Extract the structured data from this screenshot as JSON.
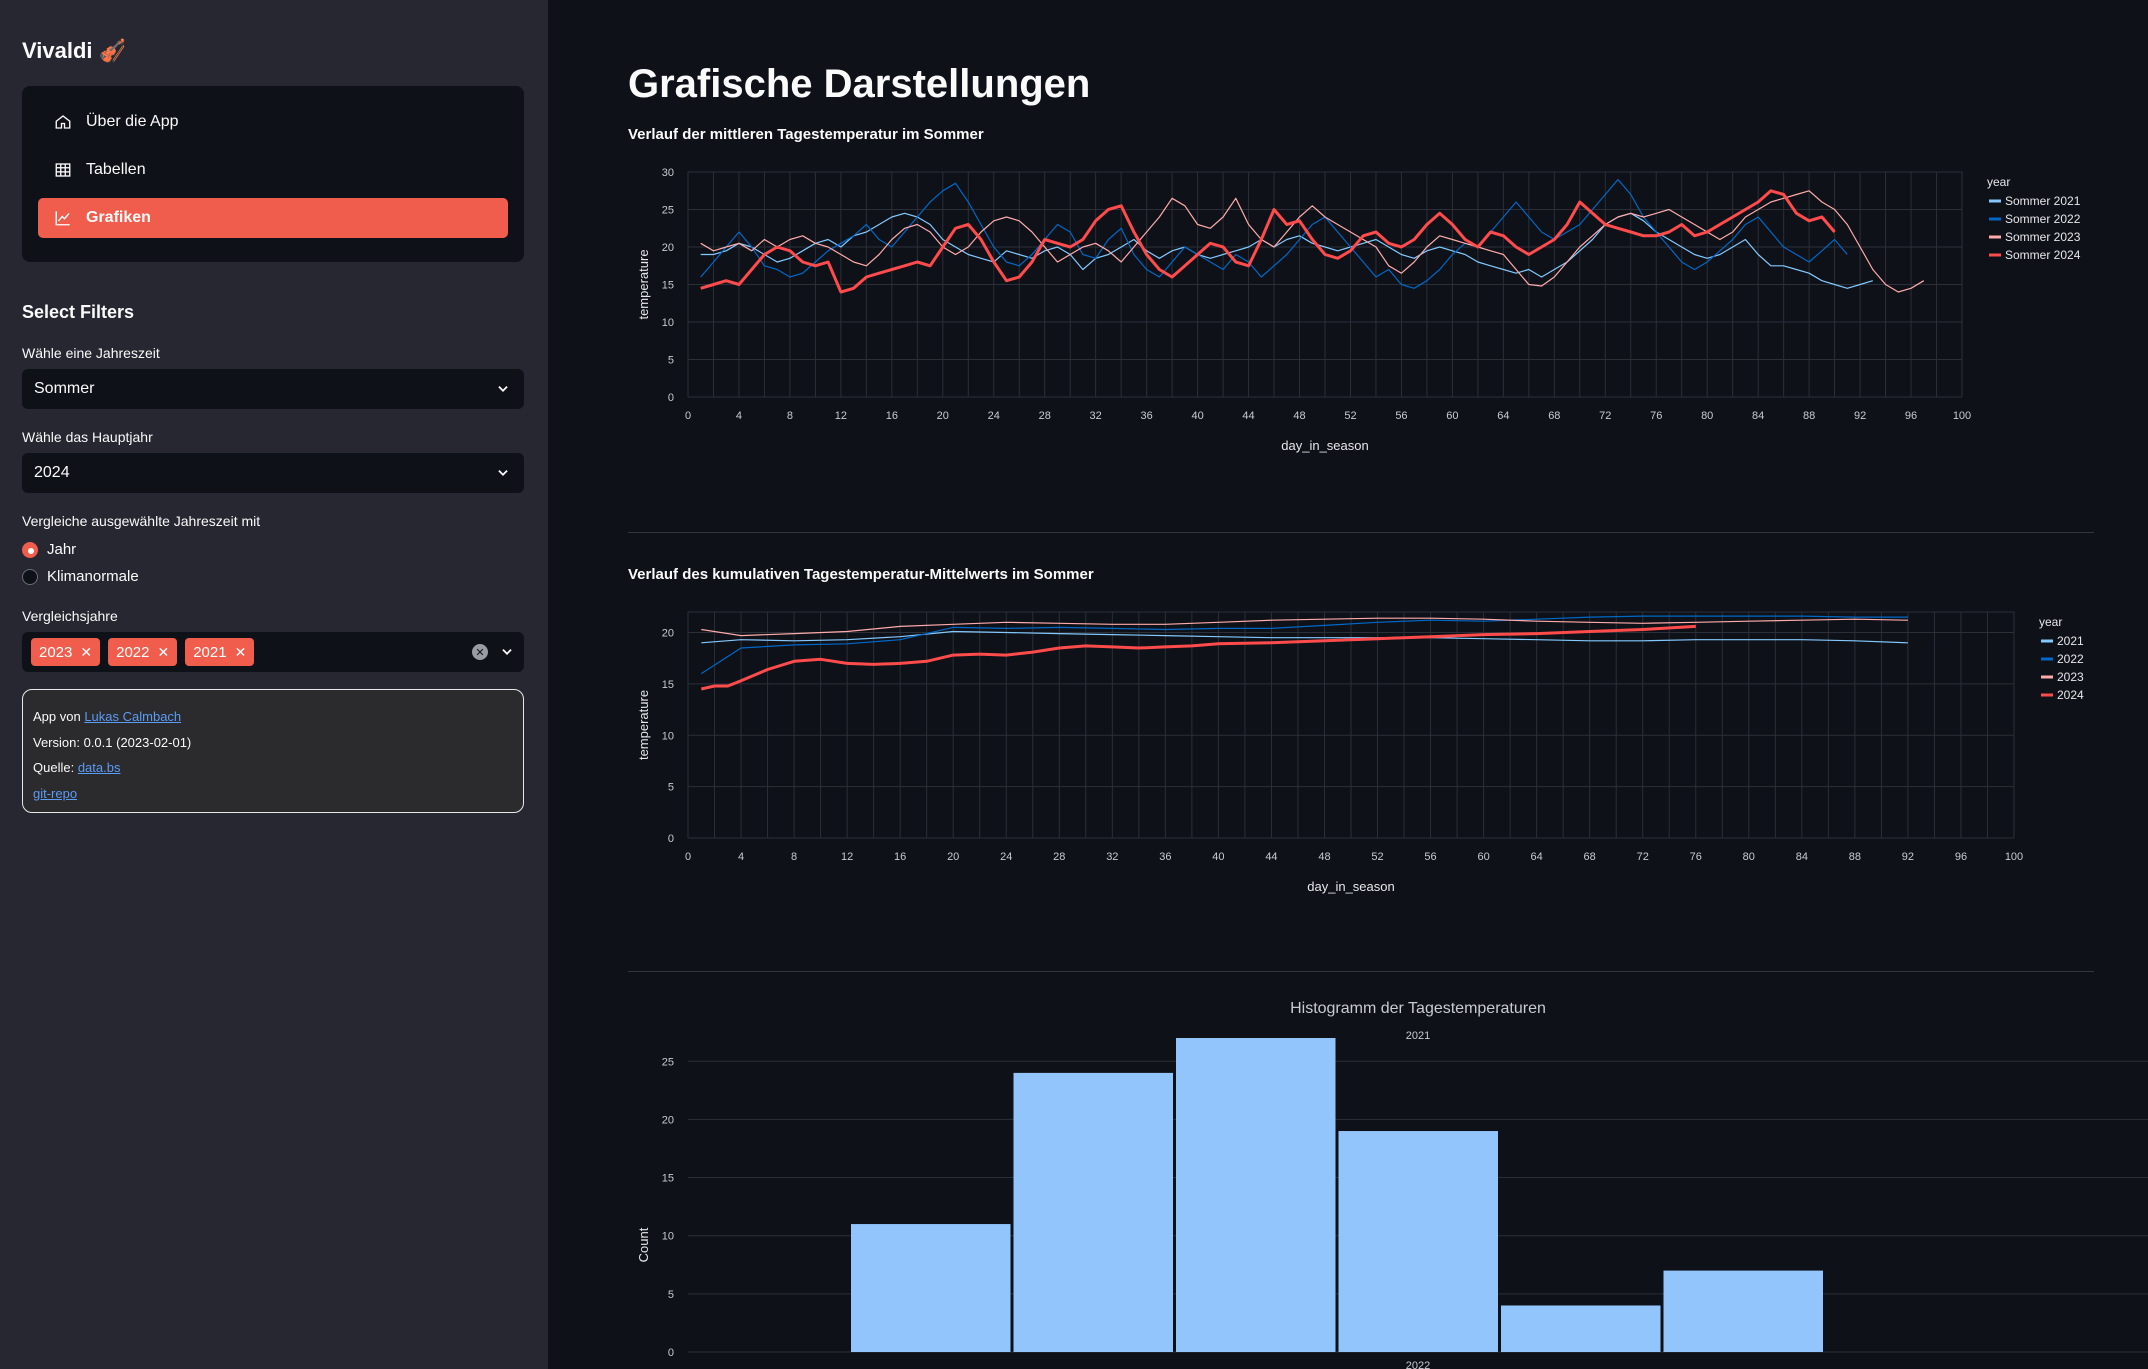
{
  "app": {
    "title": "Vivaldi",
    "title_icon": "🎻"
  },
  "nav": {
    "items": [
      {
        "label": "Über die App",
        "icon": "house-icon",
        "active": false
      },
      {
        "label": "Tabellen",
        "icon": "table-icon",
        "active": false
      },
      {
        "label": "Grafiken",
        "icon": "line-chart-icon",
        "active": true
      }
    ]
  },
  "filters": {
    "title": "Select Filters",
    "season_label": "Wähle eine Jahreszeit",
    "season_value": "Sommer",
    "year_label": "Wähle das Hauptjahr",
    "year_value": "2024",
    "compare_label": "Vergleiche ausgewählte Jahreszeit mit",
    "compare_options": [
      {
        "label": "Jahr",
        "checked": true
      },
      {
        "label": "Klimanormale",
        "checked": false
      }
    ],
    "years_label": "Vergleichsjahre",
    "years_selected": [
      "2023",
      "2022",
      "2021"
    ]
  },
  "info": {
    "author_prefix": "App von ",
    "author_name": "Lukas Calmbach",
    "version": "Version: 0.0.1 (2023-02-01)",
    "source_prefix": "Quelle: ",
    "source_link": "data.bs",
    "repo_link": "git-repo"
  },
  "main": {
    "title": "Grafische Darstellungen"
  },
  "colors": {
    "y2021": "#83c9ff",
    "y2022": "#0068c9",
    "y2023": "#ffabab",
    "y2024": "#ff4b4b",
    "accent": "#f05d4d",
    "hist_bar": "#93c5fd"
  },
  "chart_data": [
    {
      "type": "line",
      "title": "Verlauf der mittleren Tagestemperatur im Sommer",
      "xlabel": "day_in_season",
      "ylabel": "temperature",
      "xlim": [
        0,
        100
      ],
      "ylim": [
        0,
        30
      ],
      "xticks": [
        0,
        4,
        8,
        12,
        16,
        20,
        24,
        28,
        32,
        36,
        40,
        44,
        48,
        52,
        56,
        60,
        64,
        68,
        72,
        76,
        80,
        84,
        88,
        92,
        96,
        100
      ],
      "yticks": [
        0,
        5,
        10,
        15,
        20,
        25,
        30
      ],
      "legend_title": "year",
      "legend_position": "top-right",
      "series": [
        {
          "name": "Sommer 2021",
          "color": "#83c9ff",
          "width": 1.2,
          "values": [
            19,
            19,
            19.5,
            20.5,
            20,
            19,
            18,
            18.5,
            19.5,
            20.5,
            21,
            20,
            21.5,
            22,
            23,
            24,
            24.5,
            24,
            23,
            21,
            20,
            19,
            18.5,
            18,
            19.5,
            19,
            18.5,
            19.5,
            20,
            19,
            17,
            18.5,
            19,
            20,
            21,
            19.5,
            18.5,
            19.5,
            20,
            19,
            18.5,
            19,
            19.5,
            20,
            21,
            20,
            21,
            21.5,
            20.5,
            20,
            19.5,
            20,
            20.5,
            21,
            20,
            19,
            18.5,
            19.5,
            20,
            19.5,
            19,
            18,
            17.5,
            17,
            16.5,
            17,
            16,
            17,
            18,
            19.5,
            21,
            23,
            24,
            24.5,
            23.5,
            22,
            21,
            20,
            19,
            18.5,
            19,
            20,
            21,
            19,
            17.5,
            17.5,
            17,
            16.5,
            15.5,
            15,
            14.5,
            15,
            15.5
          ]
        },
        {
          "name": "Sommer 2022",
          "color": "#0068c9",
          "width": 1.2,
          "values": [
            16,
            18,
            20,
            22,
            20,
            17.5,
            17,
            16,
            16.5,
            18,
            19.5,
            20.5,
            21.5,
            23,
            21,
            20,
            22,
            24,
            26,
            27.5,
            28.5,
            26,
            23,
            20,
            18,
            17.5,
            19,
            21,
            23,
            22,
            19,
            18.5,
            21,
            22.5,
            19,
            17,
            16,
            18,
            20,
            19,
            18,
            17,
            19,
            18,
            16,
            17.5,
            19,
            21,
            23,
            24,
            22,
            20,
            18,
            16,
            17,
            15,
            14.5,
            15.5,
            17,
            19,
            20.5,
            20,
            22,
            24,
            26,
            24,
            22,
            21,
            22,
            23,
            25,
            27,
            29,
            27,
            24,
            22,
            20,
            18,
            17,
            18,
            19.5,
            21,
            23,
            24,
            22,
            20,
            19,
            18,
            19.5,
            21,
            19
          ]
        },
        {
          "name": "Sommer 2023",
          "color": "#ffabab",
          "width": 1.2,
          "values": [
            20.5,
            19.5,
            20,
            20.5,
            19.5,
            21,
            20,
            21,
            21.5,
            20.5,
            20,
            19,
            18,
            17.5,
            19,
            21,
            22.5,
            23,
            22,
            20,
            19,
            20,
            22,
            23.5,
            24,
            23.5,
            22,
            20,
            18,
            19,
            20,
            20.5,
            19.5,
            18,
            20,
            22,
            24,
            26.5,
            25.5,
            23,
            22.5,
            24,
            26.5,
            23,
            21,
            20,
            22,
            24,
            25.5,
            24,
            23,
            22,
            21,
            20,
            17.5,
            16.5,
            18,
            20,
            21.5,
            21,
            20.5,
            20,
            19.5,
            19,
            17,
            15,
            14.8,
            16,
            18,
            20,
            21.5,
            23,
            24,
            24.5,
            24,
            24.5,
            25,
            24,
            23,
            22,
            21,
            22,
            24,
            25,
            26,
            26.5,
            27,
            27.5,
            26,
            25,
            23,
            20,
            17,
            15,
            14,
            14.5,
            15.5
          ]
        },
        {
          "name": "Sommer 2024",
          "color": "#ff4b4b",
          "width": 3,
          "values": [
            14.5,
            15,
            15.5,
            15,
            17,
            19,
            20,
            19.5,
            18,
            17.5,
            18,
            14,
            14.5,
            16,
            16.5,
            17,
            17.5,
            18,
            17.5,
            20,
            22.5,
            23,
            21,
            18,
            15.5,
            16,
            18,
            21,
            20.5,
            20,
            21,
            23.5,
            25,
            25.5,
            22,
            19,
            17,
            16,
            17.5,
            19,
            20.5,
            20,
            18,
            17.5,
            21,
            25,
            23,
            23.5,
            21,
            19,
            18.5,
            19.5,
            21.5,
            22,
            20.5,
            20,
            21,
            23,
            24.5,
            23,
            21,
            20,
            22,
            21.5,
            20,
            19,
            20,
            21,
            23,
            26,
            24.5,
            23,
            22.5,
            22,
            21.5,
            21.5,
            22,
            23,
            21.5,
            22,
            23,
            24,
            25,
            26,
            27.5,
            27,
            24.5,
            23.5,
            24,
            22
          ]
        }
      ]
    },
    {
      "type": "line",
      "title": "Verlauf des kumulativen Tagestemperatur-Mittelwerts im Sommer",
      "xlabel": "day_in_season",
      "ylabel": "temperature",
      "xlim": [
        0,
        100
      ],
      "ylim": [
        0,
        22
      ],
      "xticks": [
        0,
        4,
        8,
        12,
        16,
        20,
        24,
        28,
        32,
        36,
        40,
        44,
        48,
        52,
        56,
        60,
        64,
        68,
        72,
        76,
        80,
        84,
        88,
        92,
        96,
        100
      ],
      "yticks": [
        0,
        5,
        10,
        15,
        20
      ],
      "legend_title": "year",
      "legend_position": "top-right",
      "series": [
        {
          "name": "2021",
          "color": "#83c9ff",
          "width": 1.2,
          "x": [
            1,
            4,
            8,
            12,
            16,
            20,
            24,
            28,
            32,
            36,
            40,
            44,
            48,
            52,
            56,
            60,
            64,
            68,
            72,
            76,
            80,
            84,
            88,
            92
          ],
          "values": [
            19,
            19.3,
            19.2,
            19.3,
            19.6,
            20.1,
            20,
            19.9,
            19.8,
            19.7,
            19.6,
            19.5,
            19.5,
            19.5,
            19.5,
            19.4,
            19.3,
            19.2,
            19.2,
            19.3,
            19.3,
            19.3,
            19.2,
            19
          ]
        },
        {
          "name": "2022",
          "color": "#0068c9",
          "width": 1.2,
          "x": [
            1,
            4,
            8,
            12,
            16,
            20,
            24,
            28,
            32,
            36,
            40,
            44,
            48,
            52,
            56,
            60,
            64,
            68,
            72,
            76,
            80,
            84,
            88,
            92
          ],
          "values": [
            16,
            18.5,
            18.8,
            18.9,
            19.3,
            20.5,
            20.4,
            20.5,
            20.4,
            20.3,
            20.4,
            20.4,
            20.7,
            21,
            21.2,
            21.1,
            21.3,
            21.5,
            21.6,
            21.6,
            21.6,
            21.6,
            21.5,
            21.5
          ]
        },
        {
          "name": "2023",
          "color": "#ffabab",
          "width": 1.2,
          "x": [
            1,
            4,
            8,
            12,
            16,
            20,
            24,
            28,
            32,
            36,
            40,
            44,
            48,
            52,
            56,
            60,
            64,
            68,
            72,
            76,
            80,
            84,
            88,
            92
          ],
          "values": [
            20.3,
            19.7,
            19.9,
            20.1,
            20.6,
            20.8,
            21,
            20.9,
            20.8,
            20.8,
            21,
            21.2,
            21.3,
            21.4,
            21.4,
            21.3,
            21.1,
            21,
            20.9,
            21,
            21.1,
            21.2,
            21.3,
            21.2
          ]
        },
        {
          "name": "2024",
          "color": "#ff4b4b",
          "width": 3,
          "x": [
            1,
            2,
            3,
            4,
            6,
            8,
            10,
            12,
            14,
            16,
            18,
            20,
            22,
            24,
            26,
            28,
            30,
            32,
            34,
            36,
            38,
            40,
            44,
            48,
            52,
            56,
            60,
            64,
            68,
            72,
            76
          ],
          "values": [
            14.5,
            14.8,
            14.8,
            15.3,
            16.4,
            17.2,
            17.4,
            17,
            16.9,
            17,
            17.2,
            17.8,
            17.9,
            17.8,
            18.1,
            18.5,
            18.7,
            18.6,
            18.5,
            18.6,
            18.7,
            18.9,
            19,
            19.2,
            19.4,
            19.6,
            19.8,
            19.9,
            20.1,
            20.3,
            20.6
          ]
        }
      ]
    },
    {
      "type": "bar",
      "title": "Histogramm der Tagestemperaturen",
      "subtitle": "2021",
      "next_panel_label": "2022",
      "ylabel": "Count",
      "ylim": [
        0,
        27
      ],
      "yticks": [
        0,
        5,
        10,
        15,
        20,
        25
      ],
      "values": [
        11,
        24,
        27,
        19,
        4,
        7
      ]
    }
  ]
}
